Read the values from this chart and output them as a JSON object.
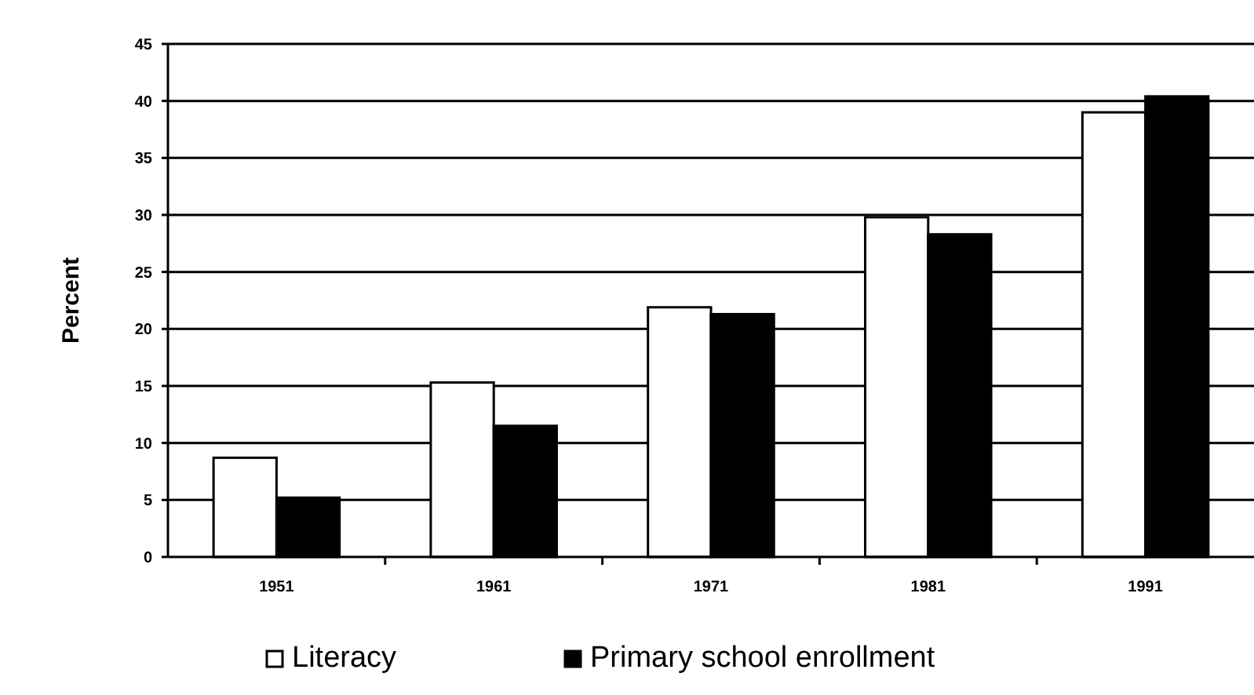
{
  "chart_data": {
    "type": "bar",
    "ylabel": "Percent",
    "categories": [
      "1951",
      "1961",
      "1971",
      "1981",
      "1991"
    ],
    "series": [
      {
        "name": "Literacy",
        "color": "#ffffff",
        "values": [
          8.7,
          15.3,
          21.9,
          29.8,
          39.0
        ]
      },
      {
        "name": "Primary school enrollment",
        "color": "#000000",
        "values": [
          5.2,
          11.5,
          21.3,
          28.3,
          40.4
        ]
      }
    ],
    "ylim": [
      0,
      45
    ],
    "yticks": [
      0,
      5,
      10,
      15,
      20,
      25,
      30,
      35,
      40,
      45
    ],
    "grid": "y",
    "legend": "bottom"
  }
}
